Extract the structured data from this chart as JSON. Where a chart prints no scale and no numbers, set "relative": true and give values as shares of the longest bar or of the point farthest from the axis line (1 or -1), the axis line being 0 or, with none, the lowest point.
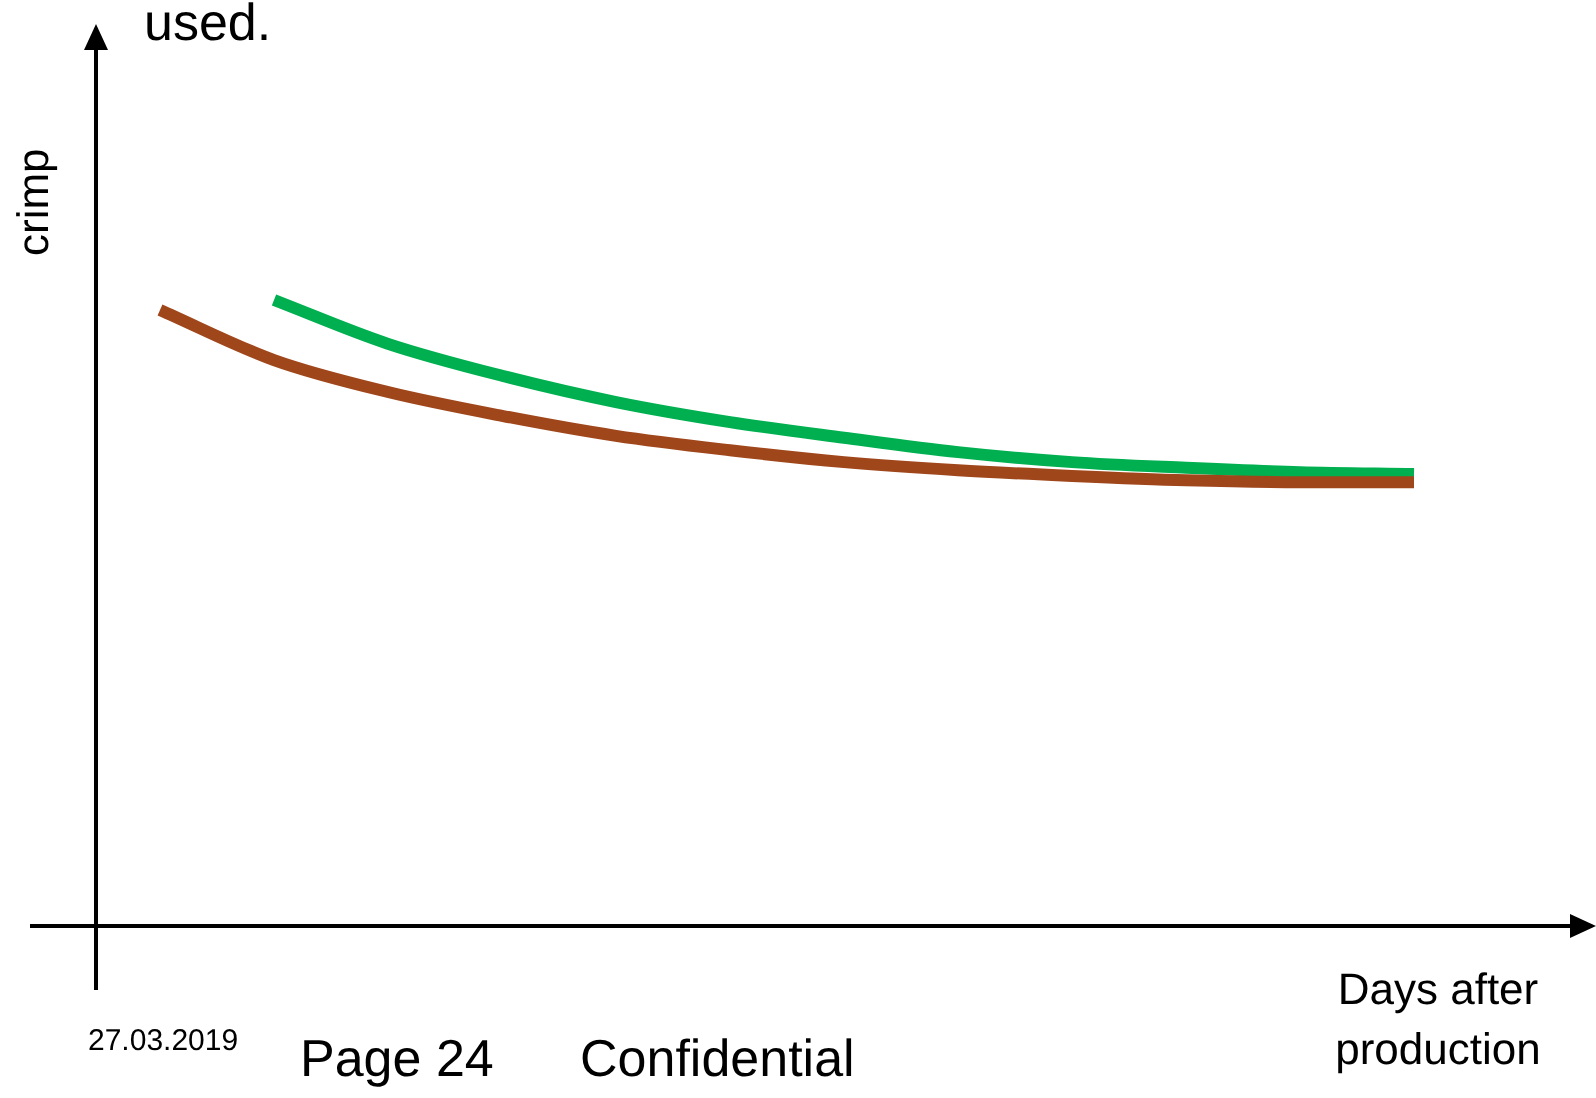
{
  "chart_data": {
    "type": "line",
    "title": "used.",
    "xlabel": "Days after production",
    "ylabel": "crimp",
    "relative": true,
    "categories": [
      null,
      null,
      null,
      null,
      null,
      null,
      null,
      null,
      null,
      null,
      null,
      null
    ],
    "series": [
      {
        "color": "#a0461b",
        "values": [
          0.984,
          0.904,
          0.853,
          0.815,
          0.783,
          0.76,
          0.741,
          0.728,
          0.719,
          0.712,
          0.709,
          0.709
        ]
      },
      {
        "color": "#00b050",
        "values": [
          null,
          1,
          0.93,
          0.879,
          0.837,
          0.805,
          0.78,
          0.757,
          0.741,
          0.732,
          0.725,
          0.722
        ]
      }
    ],
    "annotations": [
      "27.03.2019",
      "Page 24",
      "Confidential"
    ],
    "legend": false,
    "marker": "none",
    "line_style": "solid"
  }
}
